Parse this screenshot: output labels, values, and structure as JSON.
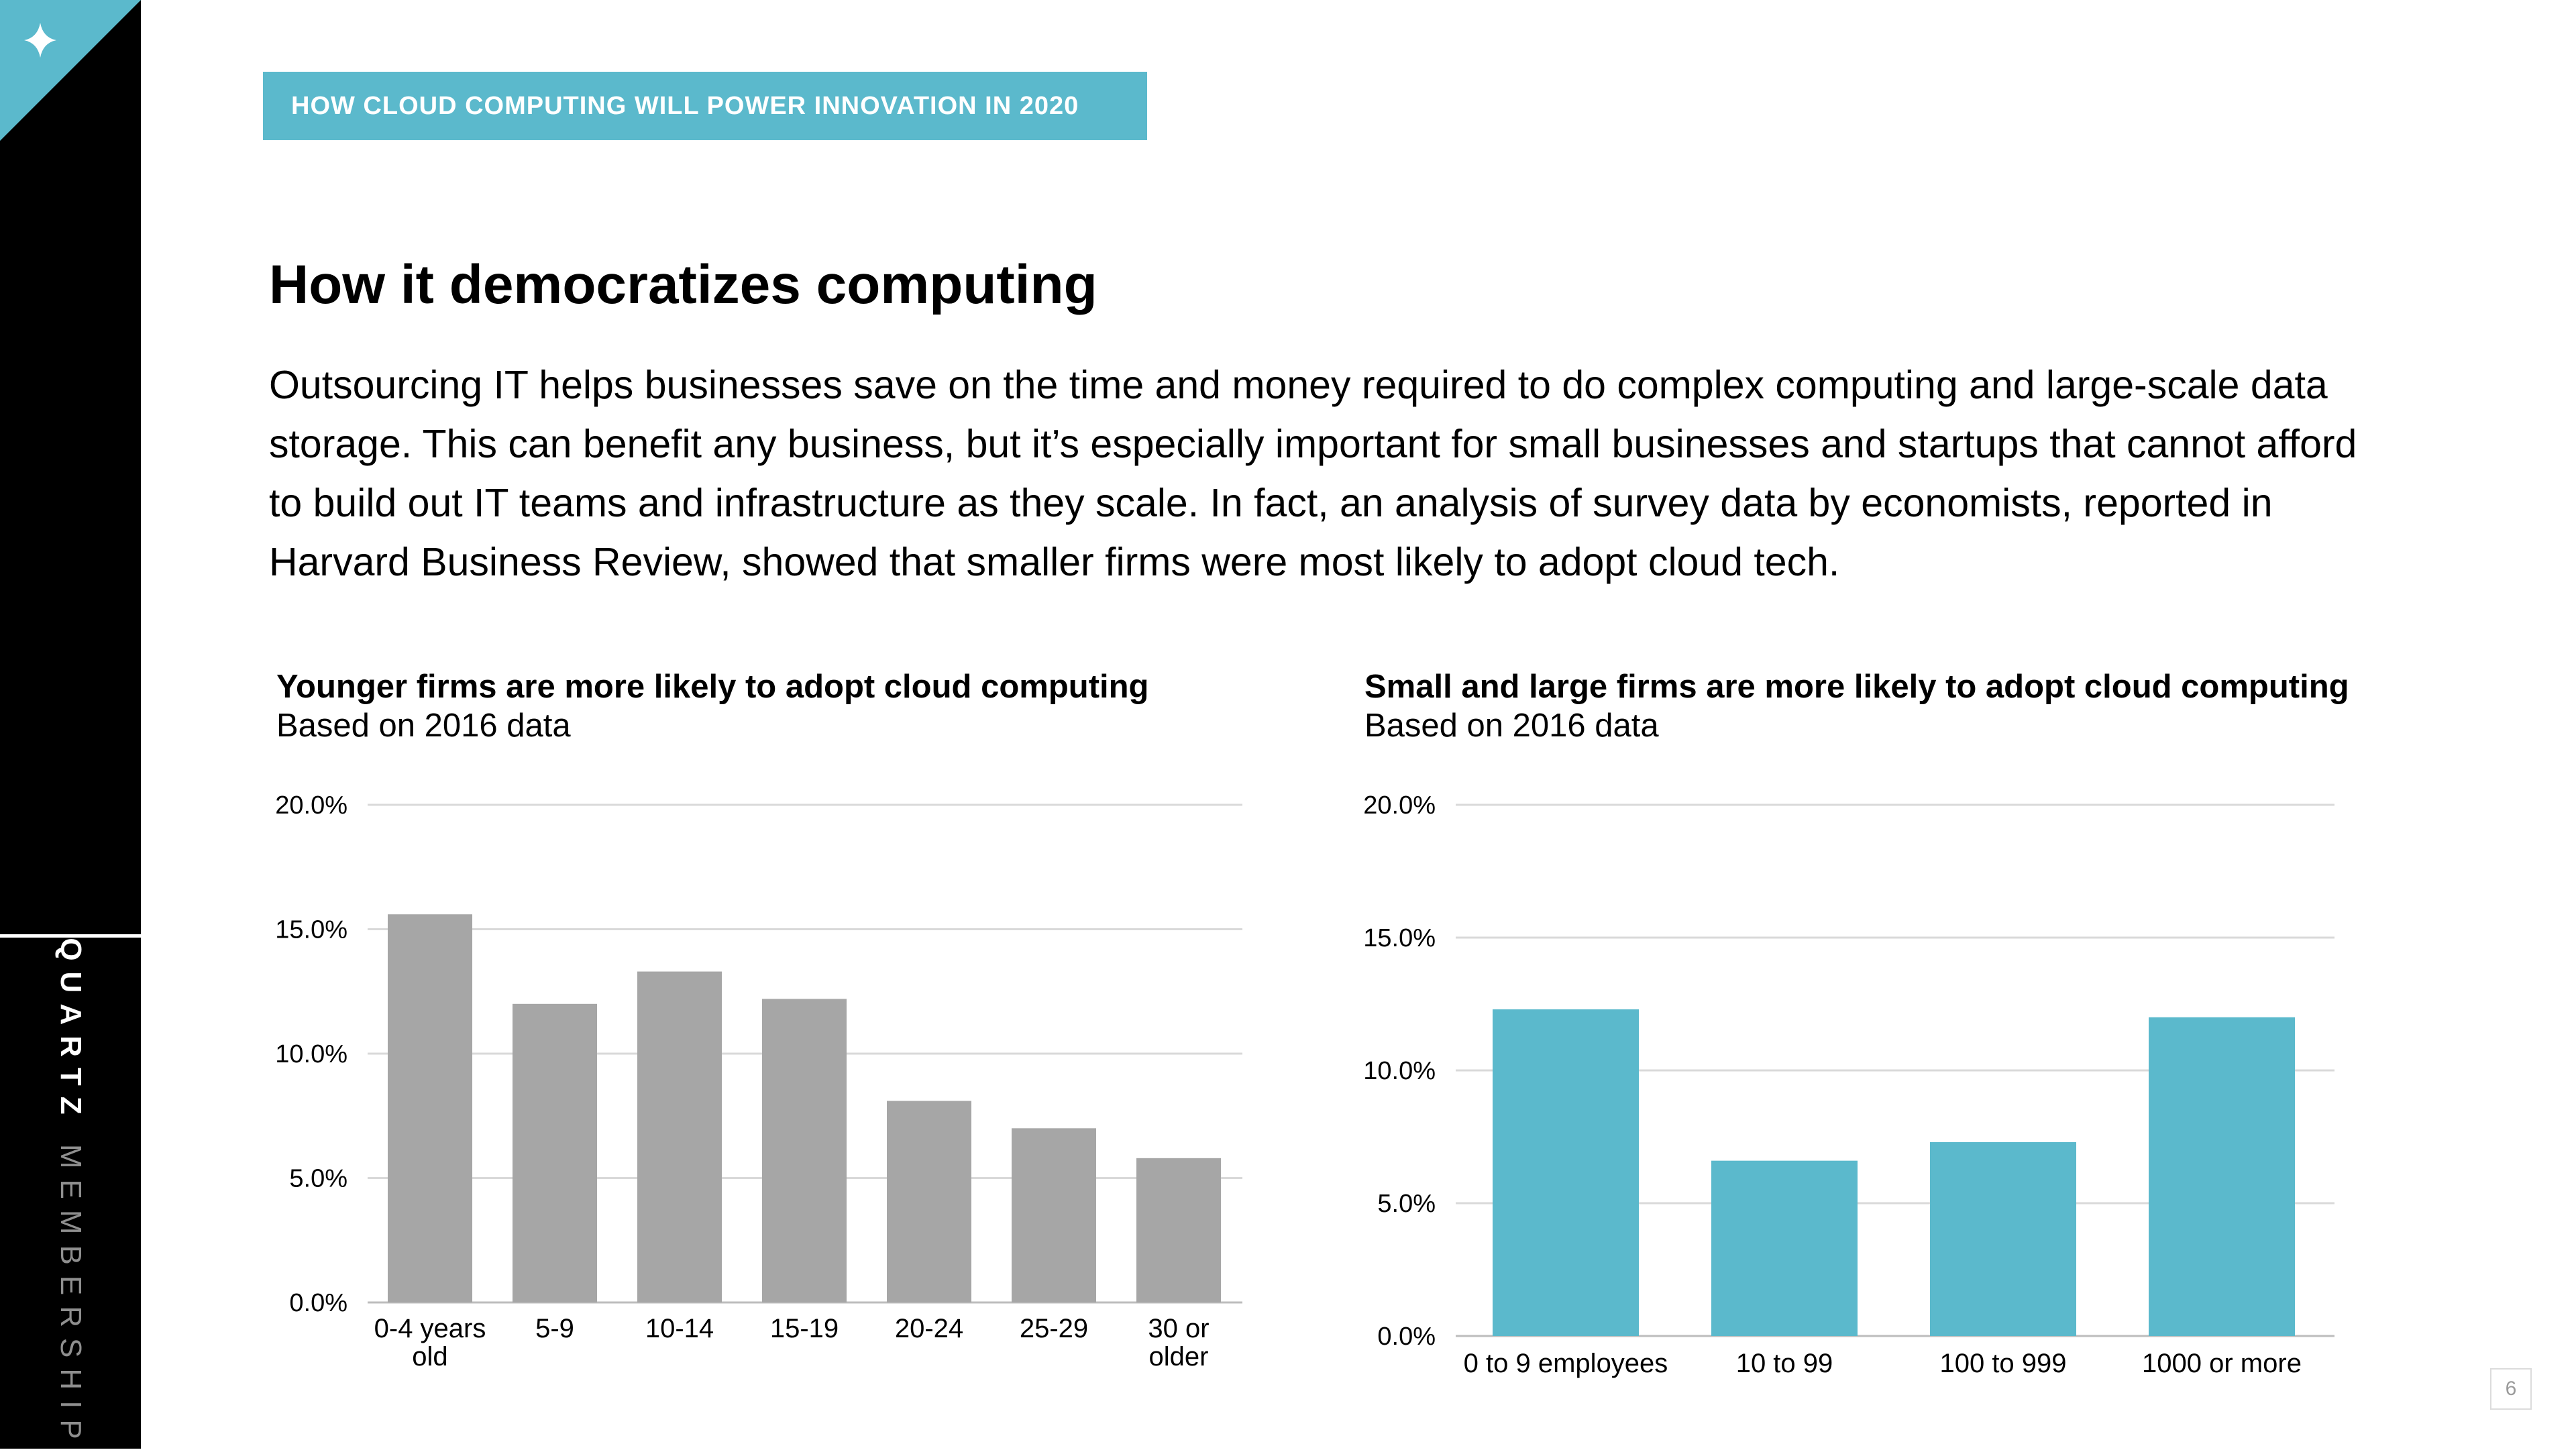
{
  "brand": {
    "name_bold": "QUARTZ",
    "name_light": "MEMBERSHIP"
  },
  "kicker": "HOW CLOUD COMPUTING WILL POWER INNOVATION IN 2020",
  "title": "How it democratizes computing",
  "body": "Outsourcing IT helps businesses save on the time and money required to do complex computing and large-scale data storage. This can benefit any business, but it’s especially important for small businesses and startups that cannot afford to build out IT teams and infrastructure as they scale. In fact, an analysis of survey data by economists, reported in Harvard Business Review, showed that smaller firms were most likely to adopt cloud tech.",
  "page_number": "6",
  "icons": {
    "corner": "sparkle-icon"
  },
  "chart_data": [
    {
      "type": "bar",
      "title": "Younger firms are more likely to adopt cloud computing",
      "subtitle": "Based on 2016 data",
      "categories": [
        [
          "0-4 years",
          "old"
        ],
        [
          "5-9"
        ],
        [
          "10-14"
        ],
        [
          "15-19"
        ],
        [
          "20-24"
        ],
        [
          "25-29"
        ],
        [
          "30 or",
          "older"
        ]
      ],
      "values": [
        15.6,
        12.0,
        13.3,
        12.2,
        8.1,
        7.0,
        5.8
      ],
      "ylim": [
        0,
        20
      ],
      "yticks": [
        "0.0%",
        "5.0%",
        "10.0%",
        "15.0%",
        "20.0%"
      ],
      "xlabel": "",
      "ylabel": "",
      "grid": true,
      "color": "#a6a6a6"
    },
    {
      "type": "bar",
      "title": "Small and large firms are more likely to adopt cloud computing",
      "subtitle": "Based on 2016 data",
      "categories": [
        [
          "0 to 9 employees"
        ],
        [
          "10 to 99"
        ],
        [
          "100 to 999"
        ],
        [
          "1000 or more"
        ]
      ],
      "values": [
        12.3,
        6.6,
        7.3,
        12.0
      ],
      "ylim": [
        0,
        20
      ],
      "yticks": [
        "0.0%",
        "5.0%",
        "10.0%",
        "15.0%",
        "20.0%"
      ],
      "xlabel": "",
      "ylabel": "",
      "grid": true,
      "color": "#5bb9cc"
    }
  ]
}
